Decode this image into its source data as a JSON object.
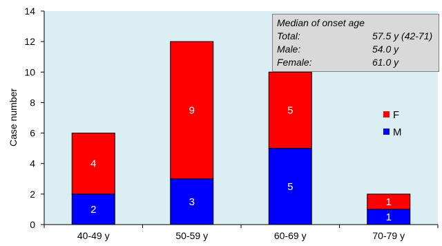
{
  "chart_data": {
    "type": "bar",
    "stacked": true,
    "title": "",
    "xlabel": "",
    "ylabel": "Case number",
    "ylim": [
      0,
      14
    ],
    "yticks": [
      0,
      2,
      4,
      6,
      8,
      10,
      12,
      14
    ],
    "grid": false,
    "legend_position": "right",
    "categories": [
      "40-49 y",
      "50-59 y",
      "60-69 y",
      "70-79 y"
    ],
    "series": [
      {
        "name": "M",
        "color": "#0000ff",
        "values": [
          2,
          3,
          5,
          1
        ]
      },
      {
        "name": "F",
        "color": "#ff0000",
        "values": [
          4,
          9,
          5,
          1
        ]
      }
    ],
    "plot_background": "#dbeef4",
    "annotation": {
      "title": "Median of onset age",
      "rows": [
        {
          "label": "Total:",
          "value": "57.5 y (42-71)"
        },
        {
          "label": "Male:",
          "value": "54.0 y"
        },
        {
          "label": "Female:",
          "value": "61.0 y"
        }
      ]
    }
  }
}
